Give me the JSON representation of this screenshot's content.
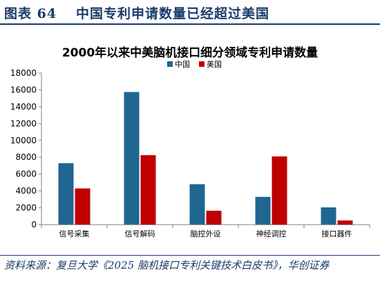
{
  "header": {
    "figure_label": "图表 64",
    "figure_title": "中国专利申请数量已经超过美国"
  },
  "footer": {
    "source": "资料来源：复旦大学《2025 脑机接口专利关键技术白皮书》，华创证券"
  },
  "colors": {
    "china": "#1f6690",
    "usa": "#c00000",
    "axis": "#808080",
    "header": "#1a3a6b"
  },
  "chart_data": {
    "type": "bar",
    "title": "2000年以来中美脑机接口细分领域专利申请数量",
    "categories": [
      "信号采集",
      "信号解码",
      "脑控外设",
      "神经调控",
      "接口器件"
    ],
    "series": [
      {
        "name": "中国",
        "values": [
          7300,
          15750,
          4800,
          3300,
          2050
        ]
      },
      {
        "name": "美国",
        "values": [
          4300,
          8250,
          1650,
          8100,
          500
        ]
      }
    ],
    "ylim": [
      0,
      18000
    ],
    "yticks": [
      0,
      2000,
      4000,
      6000,
      8000,
      10000,
      12000,
      14000,
      16000,
      18000
    ],
    "legend_position": "top-center",
    "grid": false
  }
}
